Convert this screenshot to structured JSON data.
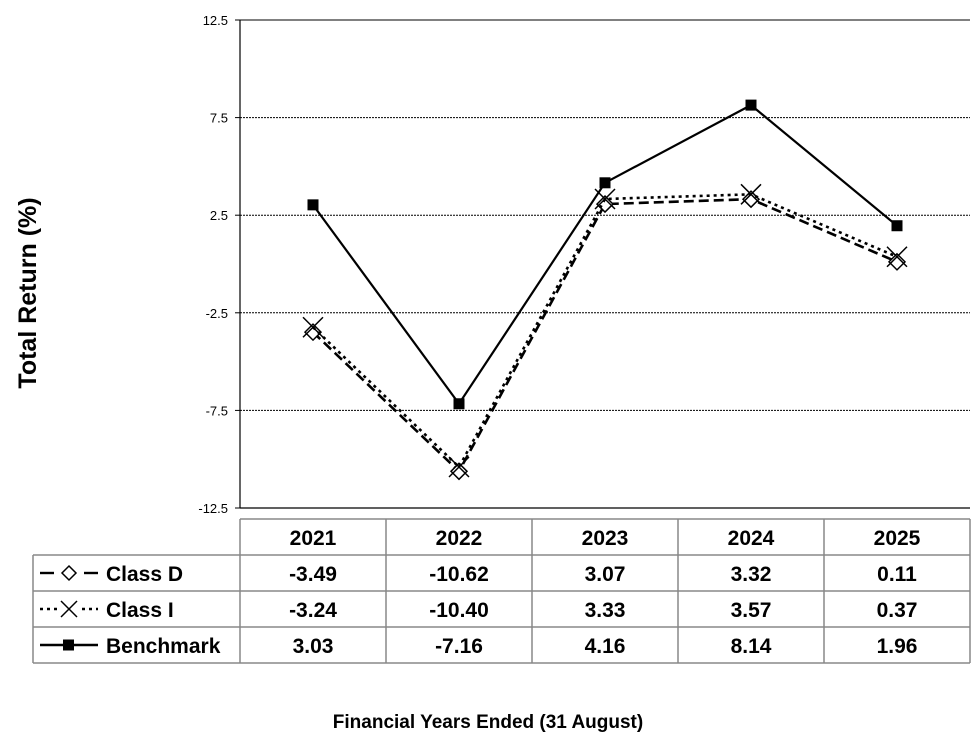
{
  "chart_data": {
    "type": "line",
    "title": "",
    "xlabel": "Financial  Years Ended (31 August)",
    "ylabel": "Total Return (%)",
    "ylim": [
      -12.5,
      12.5
    ],
    "yticks": [
      "12.5",
      "7.5",
      "2.5",
      "-2.5",
      "-7.5",
      "-12.5"
    ],
    "ytick_values": [
      12.5,
      7.5,
      2.5,
      -2.5,
      -7.5,
      -12.5
    ],
    "grid": "horizontal-dashed",
    "legend": "data-table-below",
    "categories": [
      "2021",
      "2022",
      "2023",
      "2024",
      "2025"
    ],
    "series": [
      {
        "name": "Class D",
        "values": [
          -3.49,
          -10.62,
          3.07,
          3.32,
          0.11
        ],
        "labels": [
          "-3.49",
          "-10.62",
          "3.07",
          "3.32",
          "0.11"
        ],
        "line": "dashed",
        "marker": "diamond-open",
        "color": "#000000"
      },
      {
        "name": "Class I",
        "values": [
          -3.24,
          -10.4,
          3.33,
          3.57,
          0.37
        ],
        "labels": [
          "-3.24",
          "-10.40",
          "3.33",
          "3.57",
          "0.37"
        ],
        "line": "dotted",
        "marker": "x",
        "color": "#000000"
      },
      {
        "name": "Benchmark",
        "values": [
          3.03,
          -7.16,
          4.16,
          8.14,
          1.96
        ],
        "labels": [
          "3.03",
          "-7.16",
          "4.16",
          "8.14",
          "1.96"
        ],
        "line": "solid",
        "marker": "square-filled",
        "color": "#000000"
      }
    ]
  }
}
